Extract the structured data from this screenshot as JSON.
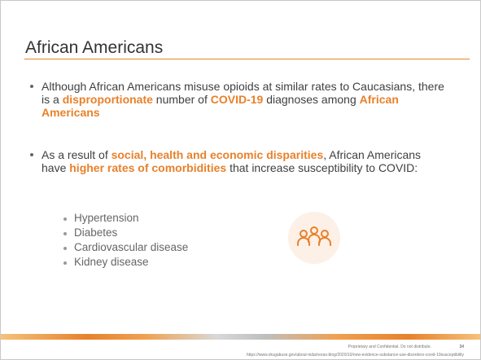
{
  "slide": {
    "title": "African Americans",
    "bullets": [
      {
        "parts": [
          {
            "text": "Although African Americans misuse opioids at similar rates to Caucasians, there is a ",
            "emphasis": false
          },
          {
            "text": "disproportionate",
            "emphasis": true
          },
          {
            "text": " number of ",
            "emphasis": false
          },
          {
            "text": "COVID-19",
            "emphasis": true
          },
          {
            "text": " diagnoses among ",
            "emphasis": false
          },
          {
            "text": "African Americans",
            "emphasis": true
          }
        ]
      },
      {
        "parts": [
          {
            "text": "As a result of ",
            "emphasis": false
          },
          {
            "text": "social, health and economic disparities",
            "emphasis": true
          },
          {
            "text": ", African Americans have ",
            "emphasis": false
          },
          {
            "text": "higher rates of comorbidities",
            "emphasis": true
          },
          {
            "text": " that increase susceptibility to COVID:",
            "emphasis": false
          }
        ]
      }
    ],
    "sub_bullets": [
      "Hypertension",
      "Diabetes",
      "Cardiovascular disease",
      "Kidney disease"
    ],
    "footer": {
      "notice": "Proprietary and Confidential. Do not distribute.",
      "page_number": "34",
      "source": "https://www.drugabuse.gov/about-nida/noras-blog/2020/10/new-evidence-substance-use-disorders-covid-19susceptibility"
    }
  }
}
